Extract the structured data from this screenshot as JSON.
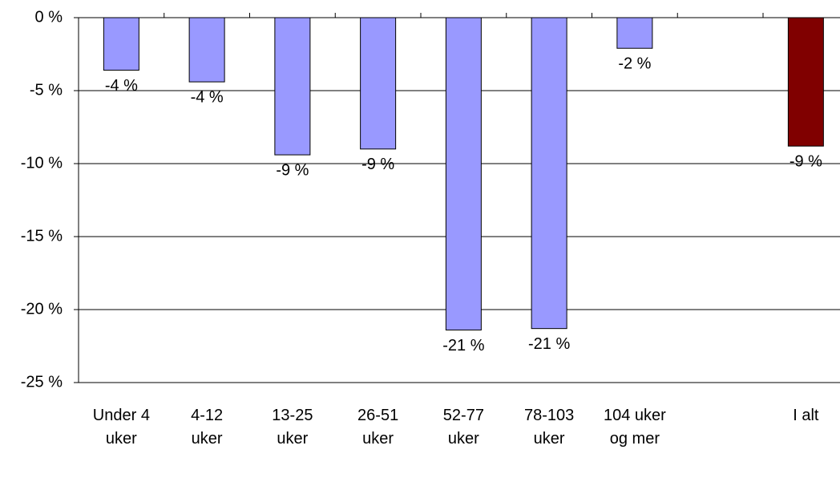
{
  "chart_data": {
    "type": "bar",
    "categories": [
      "Under 4 uker",
      "4-12 uker",
      "13-25 uker",
      "26-51 uker",
      "52-77 uker",
      "78-103 uker",
      "104 uker og mer",
      null,
      "I alt"
    ],
    "values": [
      -3.6,
      -4.4,
      -9.4,
      -9.0,
      -21.4,
      -21.3,
      -2.1,
      null,
      -8.8
    ],
    "value_labels": [
      "-4 %",
      "-4 %",
      "-9 %",
      "-9 %",
      "-21 %",
      "-21 %",
      "-2 %",
      null,
      "-9 %"
    ],
    "colors": [
      "#9999ff",
      "#9999ff",
      "#9999ff",
      "#9999ff",
      "#9999ff",
      "#9999ff",
      "#9999ff",
      null,
      "#800000"
    ],
    "ylim": [
      -25,
      0
    ],
    "yticks": [
      {
        "value": 0,
        "label": "0 %"
      },
      {
        "value": -5,
        "label": "-5 %"
      },
      {
        "value": -10,
        "label": "-10 %"
      },
      {
        "value": -15,
        "label": "-15 %"
      },
      {
        "value": -20,
        "label": "-20 %"
      },
      {
        "value": -25,
        "label": "-25 %"
      }
    ],
    "grid": true
  }
}
